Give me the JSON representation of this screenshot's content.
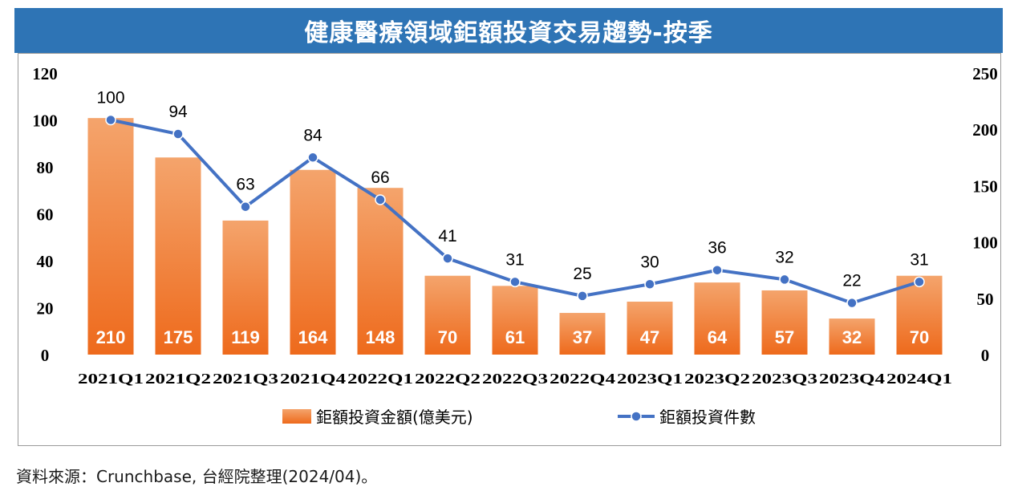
{
  "title": "健康醫療領域鉅額投資交易趨勢-按季",
  "source_note": "資料來源：Crunchbase, 台經院整理(2024/04)。",
  "colors": {
    "title_bg": "#2e74b5",
    "bar_top": "#f4a46c",
    "bar_bottom": "#ee6a1c",
    "line": "#4472c4"
  },
  "chart_data": {
    "type": "bar+line",
    "categories": [
      "2021Q1",
      "2021Q2",
      "2021Q3",
      "2021Q4",
      "2022Q1",
      "2022Q2",
      "2022Q3",
      "2022Q4",
      "2023Q1",
      "2023Q2",
      "2023Q3",
      "2023Q4",
      "2024Q1"
    ],
    "series": [
      {
        "name": "鉅額投資金額(億美元)",
        "type": "bar",
        "axis": "right",
        "values": [
          210,
          175,
          119,
          164,
          148,
          70,
          61,
          37,
          47,
          64,
          57,
          32,
          70
        ]
      },
      {
        "name": "鉅額投資件數",
        "type": "line",
        "axis": "left",
        "values": [
          100,
          94,
          63,
          84,
          66,
          41,
          31,
          25,
          30,
          36,
          32,
          22,
          31
        ]
      }
    ],
    "y_left": {
      "ticks": [
        "0",
        "20",
        "40",
        "60",
        "80",
        "100",
        "120"
      ],
      "ylim": [
        0,
        120
      ]
    },
    "y_right": {
      "ticks": [
        "0",
        "50",
        "100",
        "150",
        "200",
        "250"
      ],
      "ylim": [
        0,
        250
      ]
    },
    "legend": "bottom",
    "grid": false
  }
}
